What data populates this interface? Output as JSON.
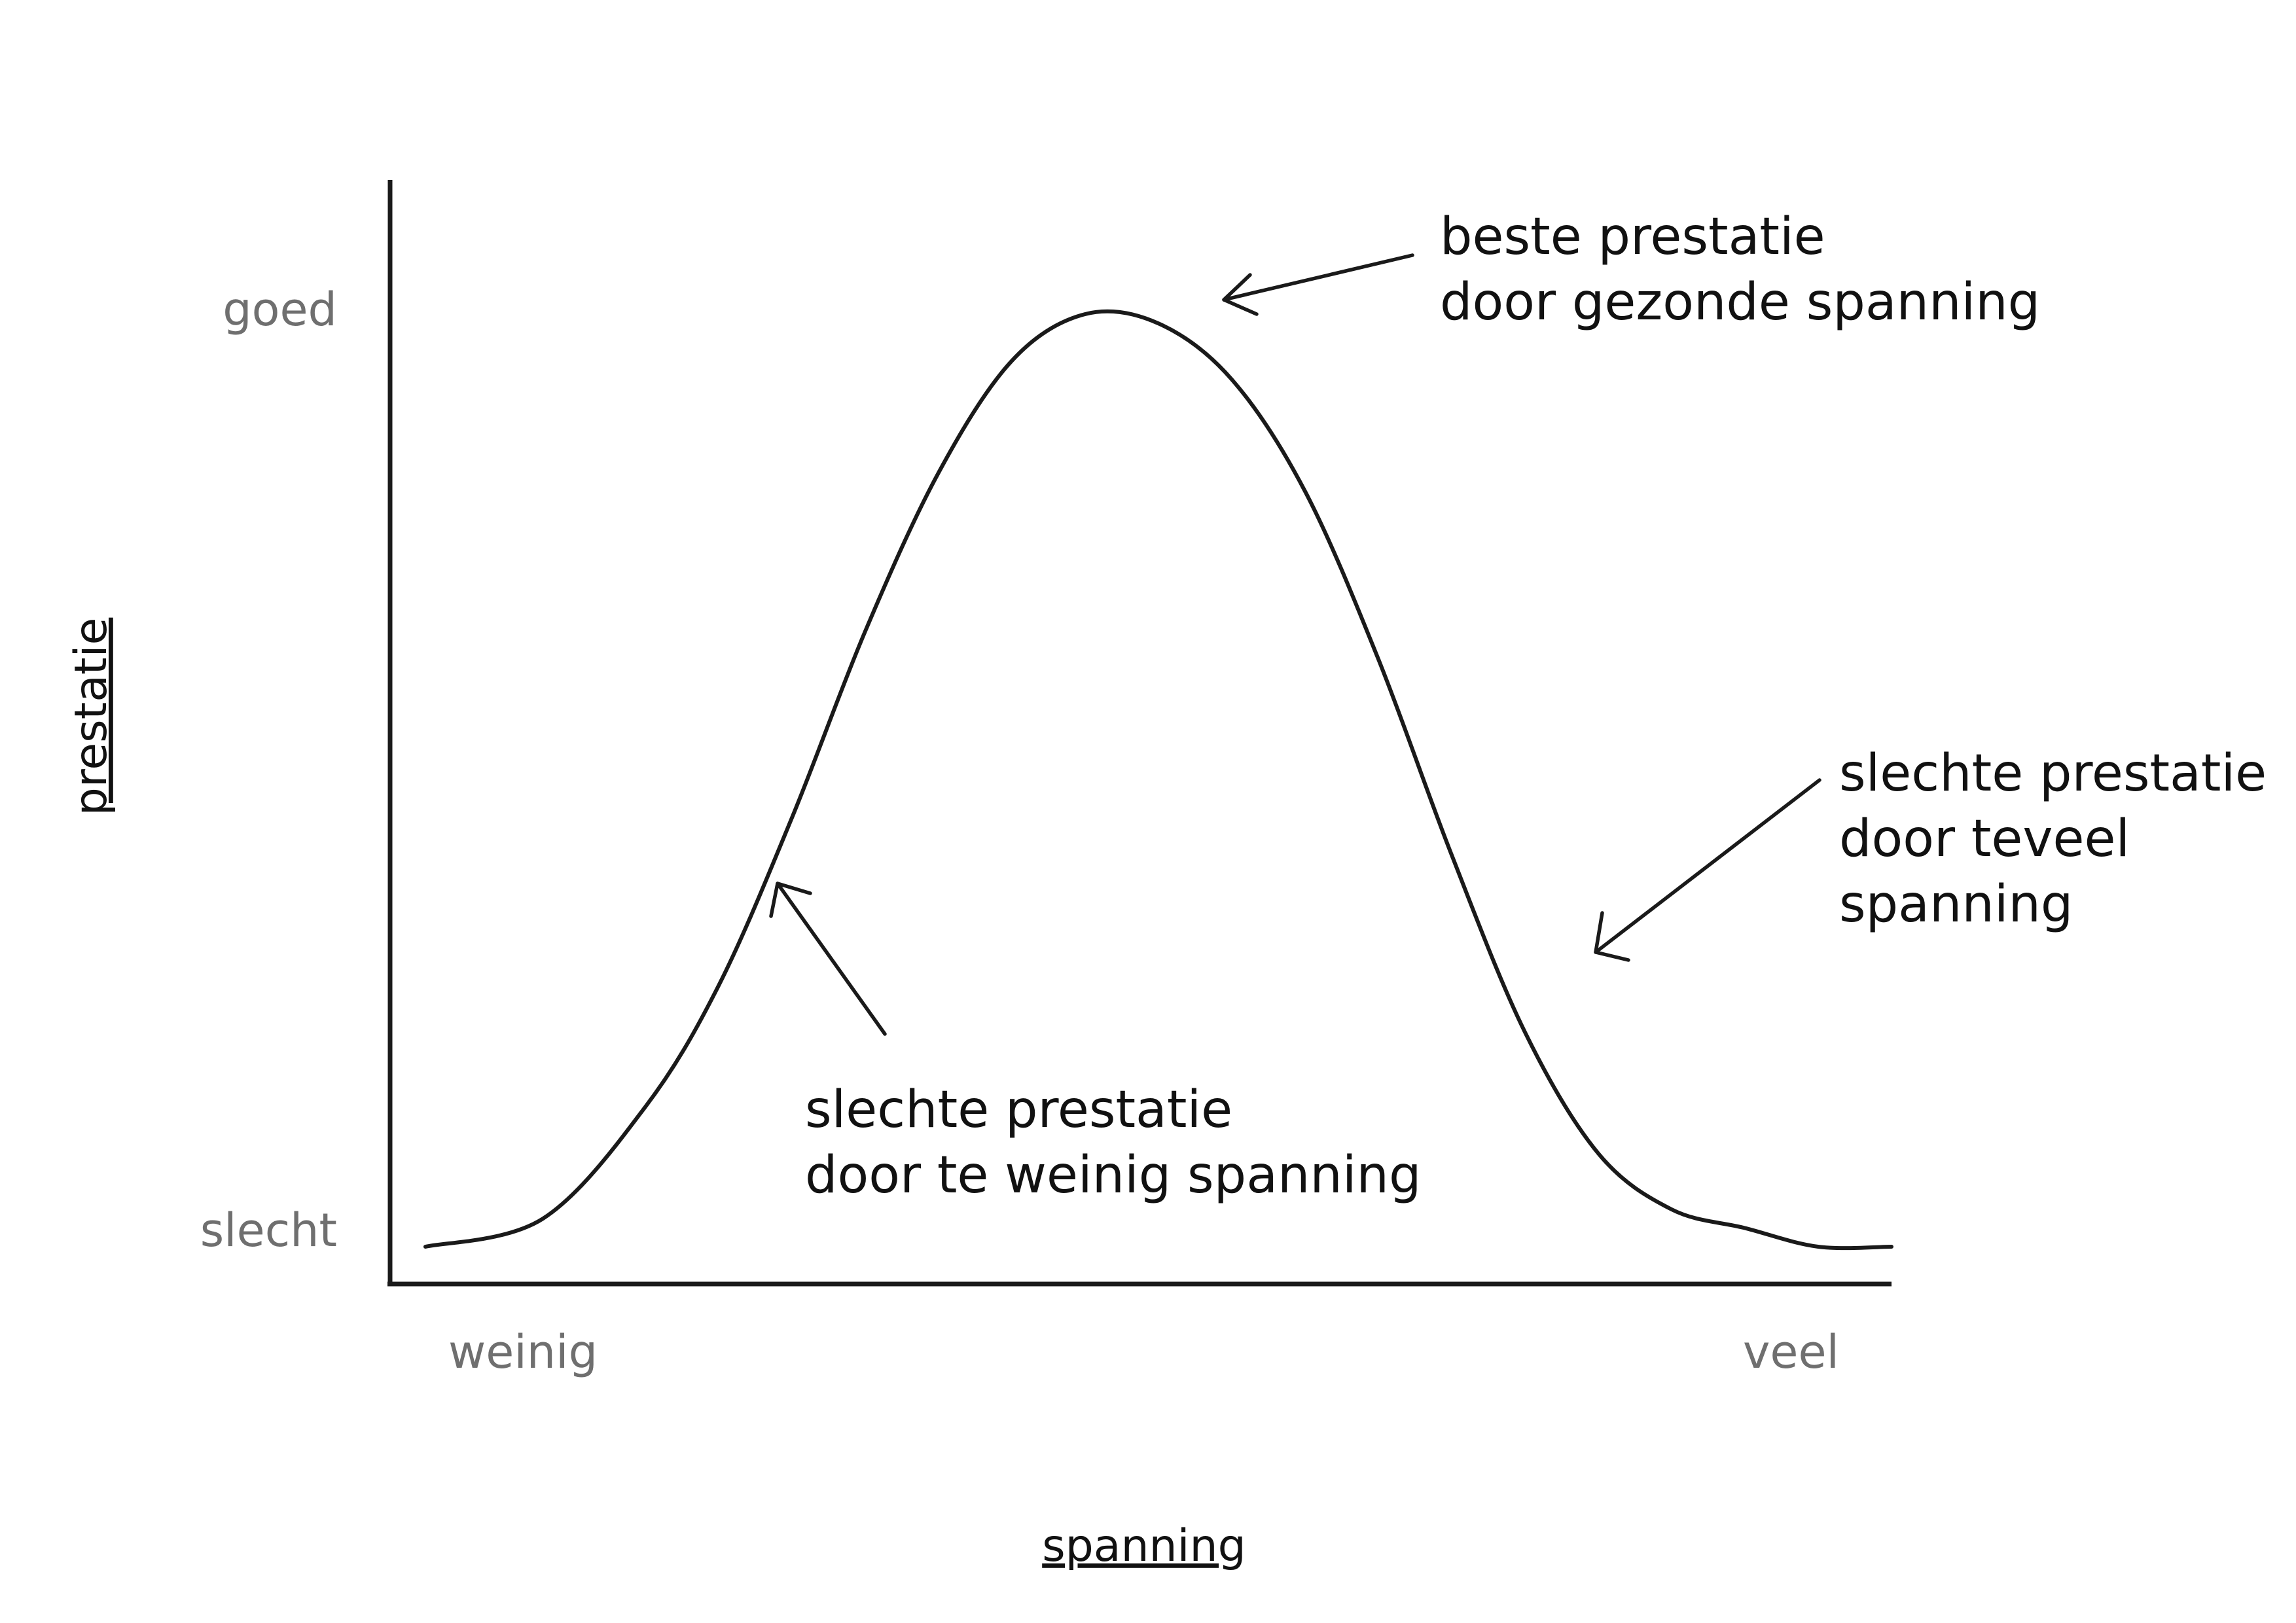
{
  "chart_data": {
    "type": "line",
    "xlabel": "spanning",
    "ylabel": "prestatie",
    "x_ticks": [
      "weinig",
      "veel"
    ],
    "y_ticks": [
      "goed",
      "slecht"
    ],
    "xlim": [
      0,
      1
    ],
    "ylim": [
      0,
      1
    ],
    "grid": false,
    "series": [
      {
        "x": [
          0.0,
          0.08,
          0.15,
          0.2,
          0.25,
          0.3,
          0.35,
          0.4,
          0.45,
          0.5,
          0.55,
          0.6,
          0.65,
          0.7,
          0.75,
          0.8,
          0.85,
          0.9,
          0.95,
          1.0
        ],
        "y": [
          0.0,
          0.03,
          0.15,
          0.28,
          0.46,
          0.66,
          0.83,
          0.95,
          1.0,
          0.99,
          0.93,
          0.81,
          0.63,
          0.42,
          0.23,
          0.1,
          0.04,
          0.02,
          0.0,
          0.0
        ]
      }
    ],
    "annotations": [
      {
        "lines": [
          "beste prestatie",
          "door gezonde spanning"
        ],
        "points_to": "peak"
      },
      {
        "lines": [
          "slechte prestatie",
          "door teveel",
          "spanning"
        ],
        "points_to": "right-slope"
      },
      {
        "lines": [
          "slechte prestatie",
          "door te weinig spanning"
        ],
        "points_to": "left-slope"
      }
    ]
  }
}
